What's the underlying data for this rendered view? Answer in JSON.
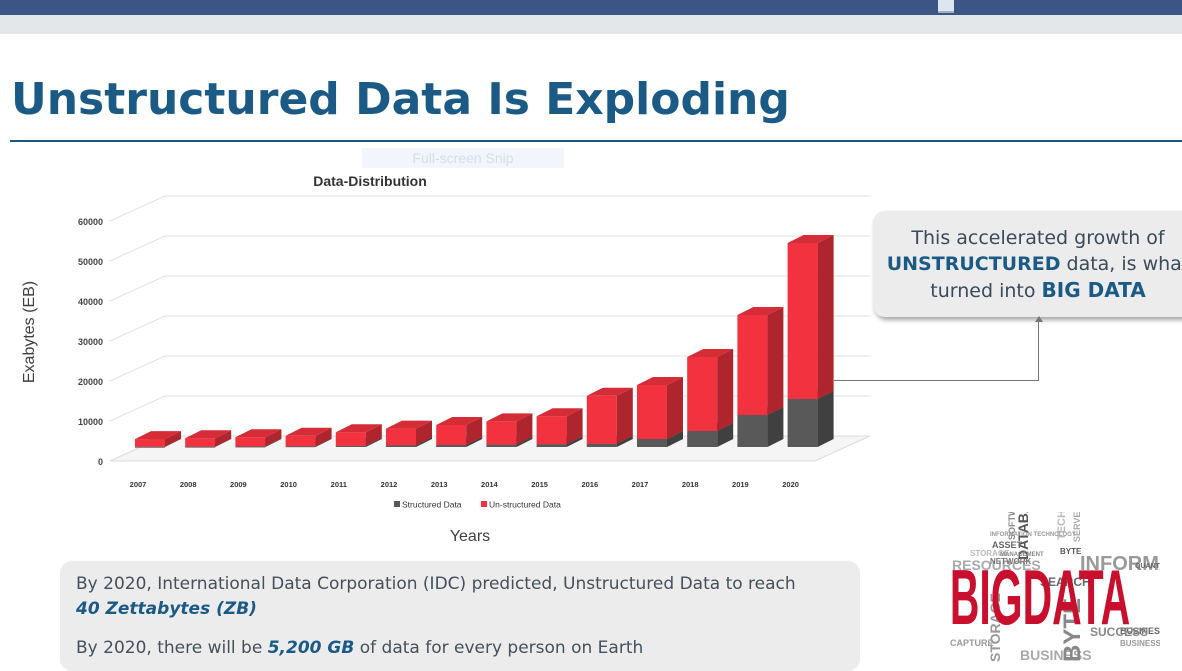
{
  "header": {
    "title": "Unstructured Data Is Exploding",
    "snip_label": "Full-screen Snip"
  },
  "chart_data": {
    "type": "bar",
    "stacked": true,
    "style": "3d",
    "title": "Data-Distribution",
    "xlabel": "Years",
    "ylabel": "Exabytes (EB)",
    "ylim": [
      0,
      60000
    ],
    "yticks": [
      "0",
      "10000",
      "20000",
      "30000",
      "40000",
      "50000",
      "60000"
    ],
    "categories": [
      "2007",
      "2008",
      "2009",
      "2010",
      "2011",
      "2012",
      "2013",
      "2014",
      "2015",
      "2016",
      "2017",
      "2018",
      "2019",
      "2020"
    ],
    "series": [
      {
        "name": "Structured Data",
        "color": "#595959",
        "values": [
          80,
          100,
          150,
          200,
          300,
          400,
          500,
          600,
          700,
          800,
          2000,
          4000,
          8000,
          12000
        ]
      },
      {
        "name": "Un-structured Data",
        "color": "#f2333f",
        "values": [
          1900,
          2100,
          2300,
          2600,
          3400,
          4200,
          5000,
          5800,
          7000,
          12000,
          13500,
          18500,
          25000,
          39000
        ]
      }
    ],
    "grid": true,
    "legend": "bottom"
  },
  "callout": {
    "line1": "This accelerated growth of",
    "strong1": "UNSTRUCTURED",
    "line2_rest": " data, is what",
    "line3_start": "turned into ",
    "strong2": "BIG DATA"
  },
  "notes": {
    "p1_text": "By 2020, International Data Corporation (IDC) predicted, Unstructured Data to reach ",
    "p1_highlight": "40 Zettabytes (ZB)",
    "p2_prefix": "By 2020, there will be ",
    "p2_highlight": "5,200 GB",
    "p2_suffix": " of data for every person on Earth"
  },
  "wordcloud": {
    "main_word": "BIGDATA",
    "words": [
      "DATABASE",
      "INFORMATION",
      "RESOURCES",
      "SEARCH",
      "STORAGE",
      "NETWORK",
      "TECHNOLOGY",
      "BYTE",
      "ASSET",
      "SOFTWARE",
      "SERVER",
      "BUSINESS",
      "SUCCESS",
      "CAPTURE",
      "QUANTITY",
      "MANAGEMENT",
      "INFORMATION TECHNOLOGY",
      "BUSINESS",
      "BYTE",
      "STORAGE",
      "BUSINESS"
    ]
  }
}
